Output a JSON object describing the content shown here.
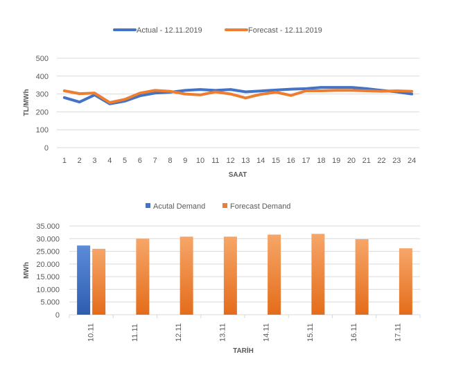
{
  "chart_data": [
    {
      "type": "line",
      "title": "",
      "xlabel": "SAAT",
      "ylabel": "TL/MWh",
      "ylim": [
        0,
        500
      ],
      "yticks": [
        0,
        100,
        200,
        300,
        400,
        500
      ],
      "grid": true,
      "legend_position": "top",
      "categories": [
        "1",
        "2",
        "3",
        "4",
        "5",
        "6",
        "7",
        "8",
        "9",
        "10",
        "11",
        "12",
        "13",
        "14",
        "15",
        "16",
        "17",
        "18",
        "19",
        "20",
        "21",
        "22",
        "23",
        "24"
      ],
      "series": [
        {
          "name": "Actual - 12.11.2019",
          "color": "#4472C4",
          "values": [
            280,
            255,
            295,
            245,
            260,
            290,
            305,
            310,
            320,
            325,
            320,
            325,
            312,
            317,
            322,
            327,
            330,
            337,
            337,
            337,
            330,
            320,
            312,
            300
          ]
        },
        {
          "name": "Forecast - 12.11.2019",
          "color": "#ED7D31",
          "values": [
            318,
            302,
            305,
            252,
            270,
            305,
            320,
            315,
            300,
            295,
            312,
            300,
            278,
            298,
            310,
            292,
            318,
            318,
            320,
            320,
            318,
            315,
            318,
            315
          ]
        }
      ]
    },
    {
      "type": "bar",
      "title": "",
      "xlabel": "TARİH",
      "ylabel": "MWh",
      "ylim": [
        0,
        35000
      ],
      "yticks": [
        "0",
        "5.000",
        "10.000",
        "15.000",
        "20.000",
        "25.000",
        "30.000",
        "35.000"
      ],
      "grid": true,
      "legend_position": "top",
      "categories": [
        "10.11",
        "11.11",
        "12.11",
        "13.11",
        "14.11",
        "15.11",
        "16.11",
        "17.11"
      ],
      "series": [
        {
          "name": "Acutal Demand",
          "color": "#4472C4",
          "values": [
            27300,
            null,
            null,
            null,
            null,
            null,
            null,
            null
          ]
        },
        {
          "name": "Forecast Demand",
          "color": "#ED7D31",
          "values": [
            26000,
            30000,
            30800,
            30800,
            31600,
            31900,
            29800,
            26200
          ]
        }
      ]
    }
  ]
}
